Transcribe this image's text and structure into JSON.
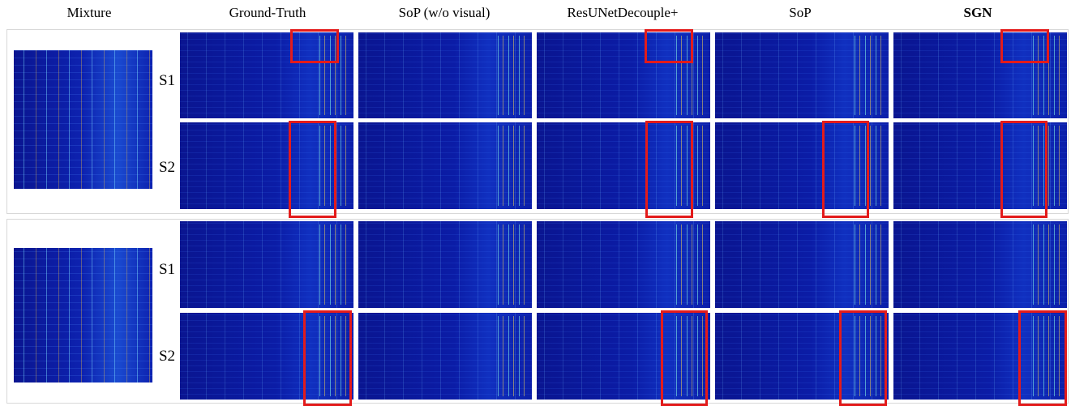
{
  "columns": [
    "Mixture",
    "Ground-Truth",
    "SoP (w/o visual)",
    "ResUNetDecouple+",
    "SoP",
    "SGN"
  ],
  "groups": [
    {
      "rows": [
        "S1",
        "S2"
      ]
    },
    {
      "rows": [
        "S1",
        "S2"
      ]
    }
  ]
}
